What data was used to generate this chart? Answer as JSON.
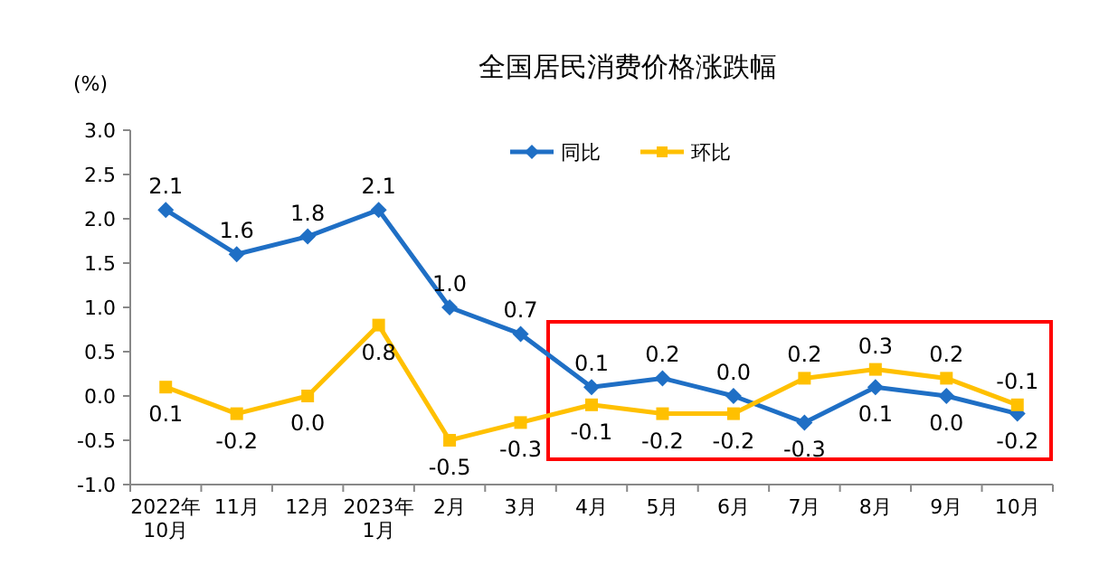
{
  "chart_data": {
    "type": "line",
    "title": "全国居民消费价格涨跌幅",
    "ylabel": "(%)",
    "categories": [
      "2022年\n10月",
      "11月",
      "12月",
      "2023年\n1月",
      "2月",
      "3月",
      "4月",
      "5月",
      "6月",
      "7月",
      "8月",
      "9月",
      "10月"
    ],
    "series": [
      {
        "name": "同比",
        "color": "#1f6fc5",
        "marker": "diamond",
        "values": [
          2.1,
          1.6,
          1.8,
          2.1,
          1.0,
          0.7,
          0.1,
          0.2,
          0.0,
          -0.3,
          0.1,
          0.0,
          -0.2
        ],
        "value_labels": [
          "2.1",
          "1.6",
          "1.8",
          "2.1",
          "1.0",
          "0.7",
          "0.1",
          "0.2",
          "0.0",
          "-0.3",
          "0.1",
          "0.0",
          "-0.2"
        ]
      },
      {
        "name": "环比",
        "color": "#ffc000",
        "marker": "square",
        "values": [
          0.1,
          -0.2,
          0.0,
          0.8,
          -0.5,
          -0.3,
          -0.1,
          -0.2,
          -0.2,
          0.2,
          0.3,
          0.2,
          -0.1
        ],
        "value_labels": [
          "0.1",
          "-0.2",
          "0.0",
          "0.8",
          "-0.5",
          "-0.3",
          "-0.1",
          "-0.2",
          "-0.2",
          "0.2",
          "0.3",
          "0.2",
          "-0.1"
        ]
      }
    ],
    "ylim": [
      -1.0,
      3.0
    ],
    "yticks": [
      {
        "value": -1.0,
        "label": "-1.0"
      },
      {
        "value": -0.5,
        "label": "-0.5"
      },
      {
        "value": 0,
        "label": "0.0"
      },
      {
        "value": 0.5,
        "label": "0.5"
      },
      {
        "value": 1.0,
        "label": "1.0"
      },
      {
        "value": 1.5,
        "label": "1.5"
      },
      {
        "value": 2.0,
        "label": "2.0"
      },
      {
        "value": 2.5,
        "label": "2.5"
      },
      {
        "value": 3.0,
        "label": "3.0"
      }
    ],
    "grid": false,
    "legend": "top",
    "line_style": "solid"
  }
}
